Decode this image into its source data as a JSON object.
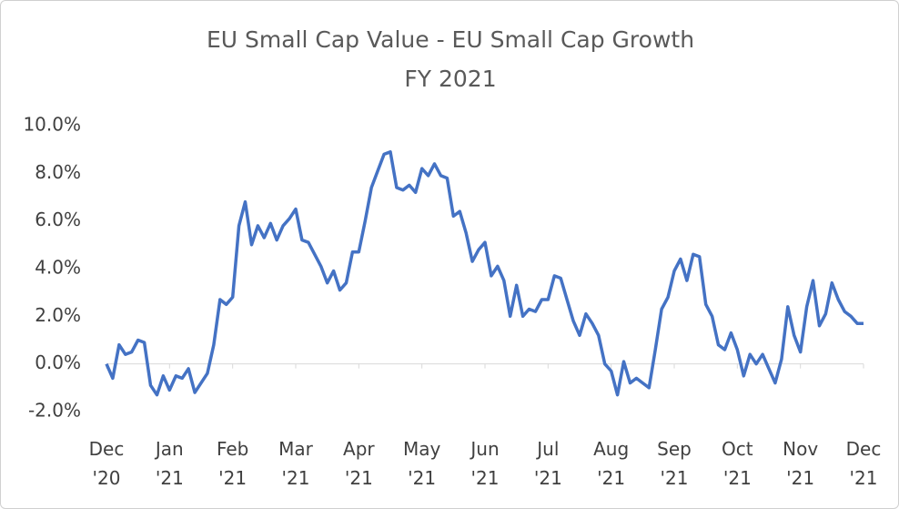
{
  "chart_data": {
    "type": "line",
    "title": "EU Small Cap Value - EU Small Cap Growth",
    "subtitle": "FY 2021",
    "categories": [
      "Dec '20",
      null,
      null,
      null,
      null,
      null,
      null,
      null,
      null,
      null,
      "Jan '21",
      null,
      null,
      null,
      null,
      null,
      null,
      null,
      null,
      null,
      "Feb '21",
      null,
      null,
      null,
      null,
      null,
      null,
      null,
      null,
      null,
      "Mar '21",
      null,
      null,
      null,
      null,
      null,
      null,
      null,
      null,
      null,
      "Apr '21",
      null,
      null,
      null,
      null,
      null,
      null,
      null,
      null,
      null,
      "May '21",
      null,
      null,
      null,
      null,
      null,
      null,
      null,
      null,
      null,
      "Jun '21",
      null,
      null,
      null,
      null,
      null,
      null,
      null,
      null,
      null,
      "Jul '21",
      null,
      null,
      null,
      null,
      null,
      null,
      null,
      null,
      null,
      "Aug '21",
      null,
      null,
      null,
      null,
      null,
      null,
      null,
      null,
      null,
      "Sep '21",
      null,
      null,
      null,
      null,
      null,
      null,
      null,
      null,
      null,
      "Oct '21",
      null,
      null,
      null,
      null,
      null,
      null,
      null,
      null,
      null,
      "Nov '21",
      null,
      null,
      null,
      null,
      null,
      null,
      null,
      null,
      null,
      "Dec '21"
    ],
    "series": [
      {
        "name": "EU Small Cap Value - EU Small Cap Growth",
        "color": "#4472c4",
        "values": [
          0,
          -0.6,
          0.8,
          0.4,
          0.5,
          1.0,
          0.9,
          -0.9,
          -1.3,
          -0.5,
          -1.1,
          -0.5,
          -0.6,
          -0.2,
          -1.2,
          -0.8,
          -0.4,
          0.8,
          2.7,
          2.5,
          2.8,
          5.8,
          6.8,
          5.0,
          5.8,
          5.3,
          5.9,
          5.2,
          5.8,
          6.1,
          6.5,
          5.2,
          5.1,
          4.6,
          4.1,
          3.4,
          3.9,
          3.1,
          3.4,
          4.7,
          4.7,
          6.0,
          7.4,
          8.1,
          8.8,
          8.9,
          7.4,
          7.3,
          7.5,
          7.2,
          8.2,
          7.9,
          8.4,
          7.9,
          7.8,
          6.2,
          6.4,
          5.5,
          4.3,
          4.8,
          5.1,
          3.7,
          4.1,
          3.5,
          2.0,
          3.3,
          2.0,
          2.3,
          2.2,
          2.7,
          2.7,
          3.7,
          3.6,
          2.7,
          1.8,
          1.2,
          2.1,
          1.7,
          1.2,
          0.0,
          -0.3,
          -1.3,
          0.1,
          -0.8,
          -0.6,
          -0.8,
          -1.0,
          0.6,
          2.3,
          2.8,
          3.9,
          4.4,
          3.5,
          4.6,
          4.5,
          2.5,
          2.0,
          0.8,
          0.6,
          1.3,
          0.6,
          -0.5,
          0.4,
          0.0,
          0.4,
          -0.2,
          -0.8,
          0.2,
          2.4,
          1.2,
          0.5,
          2.4,
          3.5,
          1.6,
          2.1,
          3.4,
          2.7,
          2.2,
          2.0,
          1.7,
          1.7
        ]
      }
    ],
    "ylim": [
      -2,
      10
    ],
    "yticks": [
      {
        "value": -2,
        "label": "-2.0%"
      },
      {
        "value": 0,
        "label": "0.0%"
      },
      {
        "value": 2,
        "label": "2.0%"
      },
      {
        "value": 4,
        "label": "4.0%"
      },
      {
        "value": 6,
        "label": "6.0%"
      },
      {
        "value": 8,
        "label": "8.0%"
      },
      {
        "value": 10,
        "label": "10.0%"
      }
    ],
    "grid": false
  }
}
